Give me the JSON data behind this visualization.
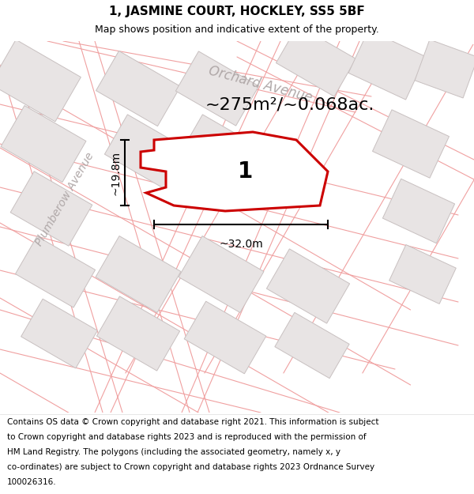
{
  "title": "1, JASMINE COURT, HOCKLEY, SS5 5BF",
  "subtitle": "Map shows position and indicative extent of the property.",
  "footer_lines": [
    "Contains OS data © Crown copyright and database right 2021. This information is subject",
    "to Crown copyright and database rights 2023 and is reproduced with the permission of",
    "HM Land Registry. The polygons (including the associated geometry, namely x, y",
    "co-ordinates) are subject to Crown copyright and database rights 2023 Ordnance Survey",
    "100026316."
  ],
  "area_text": "~275m²/~0.068ac.",
  "label": "1",
  "dim_height": "~19.8m",
  "dim_width": "~32.0m",
  "bg_color": "#f7f4f4",
  "building_fill": "#e8e4e4",
  "building_stroke": "#c8c0c0",
  "prop_boundary_color": "#f0a0a0",
  "highlight_stroke": "#cc0000",
  "highlight_fill": "#ffffff",
  "street_label_color": "#b0a8a8",
  "title_fontsize": 11,
  "subtitle_fontsize": 9,
  "area_fontsize": 16,
  "label_fontsize": 20,
  "dim_fontsize": 10,
  "footer_fontsize": 7.5,
  "figsize": [
    6.0,
    6.25
  ],
  "dpi": 100
}
